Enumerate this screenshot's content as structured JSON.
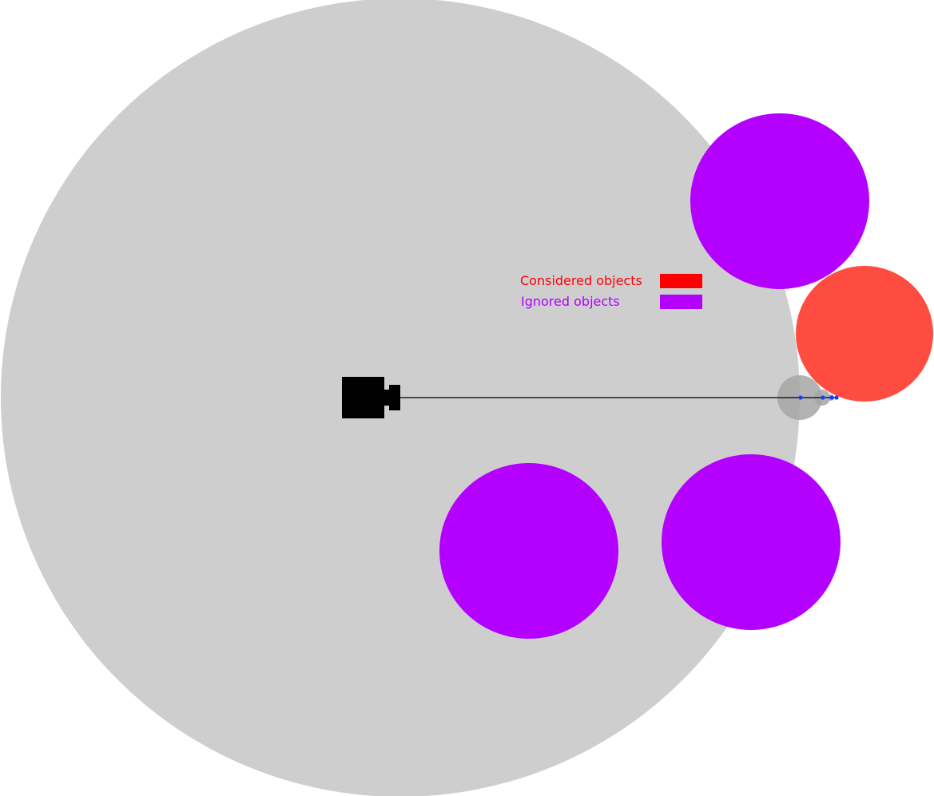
{
  "legend": {
    "considered": {
      "label": "Considered objects",
      "color": "#ff0000"
    },
    "ignored": {
      "label": "Ignored objects",
      "color": "#b400ff"
    }
  },
  "colors": {
    "background": "#ffffff",
    "range_area": "#cecece",
    "considered_object": "#ff4c40",
    "ignored_object": "#b400ff",
    "sensor": "#000000",
    "ray": "#000000",
    "ray_step_circle": "#a6a6a6",
    "ray_step_point": "#1040ff"
  },
  "icons": {
    "sensor": "camera-icon"
  }
}
